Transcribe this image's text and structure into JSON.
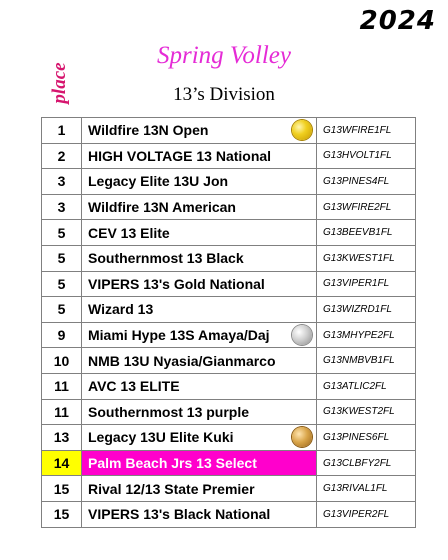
{
  "year": "2024",
  "place_label": "place",
  "title": "Spring Volley",
  "division": "13’s Division",
  "rows": [
    {
      "rank": "1",
      "team": "Wildfire 13N Open",
      "code": "G13WFIRE1FL",
      "medal": "gold-medal-icon"
    },
    {
      "rank": "2",
      "team": "HIGH VOLTAGE 13 National",
      "code": "G13HVOLT1FL"
    },
    {
      "rank": "3",
      "team": "Legacy Elite 13U Jon",
      "code": "G13PINES4FL"
    },
    {
      "rank": "3",
      "team": "Wildfire 13N American",
      "code": "G13WFIRE2FL"
    },
    {
      "rank": "5",
      "team": "CEV 13 Elite",
      "code": "G13BEEVB1FL"
    },
    {
      "rank": "5",
      "team": "Southernmost 13 Black",
      "code": "G13KWEST1FL"
    },
    {
      "rank": "5",
      "team": "VIPERS 13's Gold National",
      "code": "G13VIPER1FL"
    },
    {
      "rank": "5",
      "team": "Wizard 13",
      "code": "G13WIZRD1FL"
    },
    {
      "rank": "9",
      "team": "Miami Hype 13S Amaya/Daj",
      "code": "G13MHYPE2FL",
      "medal": "silver-medal-icon"
    },
    {
      "rank": "10",
      "team": "NMB 13U Nyasia/Gianmarco",
      "code": "G13NMBVB1FL"
    },
    {
      "rank": "11",
      "team": "AVC 13 ELITE",
      "code": "G13ATLIC2FL"
    },
    {
      "rank": "11",
      "team": "Southernmost 13 purple",
      "code": "G13KWEST2FL"
    },
    {
      "rank": "13",
      "team": "Legacy 13U Elite Kuki",
      "code": "G13PINES6FL",
      "medal": "bronze-medal-icon"
    },
    {
      "rank": "14",
      "team": "Palm Beach Jrs 13 Select",
      "code": "G13CLBFY2FL",
      "highlight": true
    },
    {
      "rank": "15",
      "team": "Rival 12/13 State Premier",
      "code": "G13RIVAL1FL"
    },
    {
      "rank": "15",
      "team": "VIPERS 13's Black National",
      "code": "G13VIPER2FL"
    }
  ],
  "colors": {
    "title": "#e52bd6",
    "place": "#d6156e",
    "rank_highlight": "#ffff00",
    "team_highlight": "#ff00cc"
  }
}
